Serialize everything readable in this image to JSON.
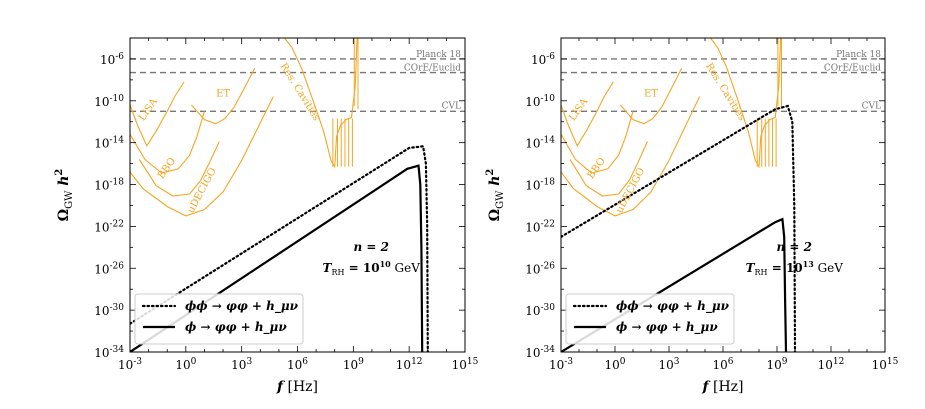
{
  "colors": {
    "detector": "#f5a623",
    "reference": "#777777",
    "signal": "#000000"
  },
  "chart_data": [
    {
      "type": "line",
      "xlabel": "f [Hz]",
      "ylabel": "Ω_GW h^2",
      "x_scale": "log10",
      "y_scale": "log10",
      "xlim_exp": [
        -3,
        15
      ],
      "ylim_exp": [
        -34,
        -4
      ],
      "x_ticks": [
        "10^-3",
        "10^0",
        "10^3",
        "10^6",
        "10^9",
        "10^12",
        "10^15"
      ],
      "y_ticks": [
        "10^-6",
        "10^-10",
        "10^-14",
        "10^-18",
        "10^-22",
        "10^-26",
        "10^-30",
        "10^-34"
      ],
      "reference_lines": [
        {
          "name": "Planck 18",
          "log10_omega": -6.0
        },
        {
          "name": "COrE/Euclid",
          "log10_omega": -7.3
        },
        {
          "name": "CVL",
          "log10_omega": -11.0
        }
      ],
      "detector_labels": [
        "LISA",
        "ET",
        "BBO",
        "uDECIGO",
        "Res. Cavities"
      ],
      "annotation": {
        "n": "n = 2",
        "trh": "T_RH = 10^10 GeV"
      },
      "legend": [
        "ϕϕ → φφ + h_μν",
        "ϕ → φφ + h_μν"
      ],
      "series": [
        {
          "name": "ϕϕ → φφ + h_μν",
          "style": "dotted",
          "log10_f": [
            -3,
            12.0,
            12.75,
            12.9,
            12.97,
            13.0
          ],
          "log10_omega": [
            -31.3,
            -14.5,
            -14.35,
            -16,
            -22,
            -34
          ]
        },
        {
          "name": "ϕ → φφ + h_μν",
          "style": "solid",
          "log10_f": [
            -3,
            11.9,
            12.5,
            12.6,
            12.66,
            12.7
          ],
          "log10_omega": [
            -34.0,
            -16.5,
            -16.2,
            -18,
            -24,
            -34
          ]
        }
      ]
    },
    {
      "type": "line",
      "xlabel": "f [Hz]",
      "ylabel": "Ω_GW h^2",
      "x_scale": "log10",
      "y_scale": "log10",
      "xlim_exp": [
        -3,
        15
      ],
      "ylim_exp": [
        -34,
        -4
      ],
      "x_ticks": [
        "10^-3",
        "10^0",
        "10^3",
        "10^6",
        "10^9",
        "10^12",
        "10^15"
      ],
      "y_ticks": [
        "10^-6",
        "10^-10",
        "10^-14",
        "10^-18",
        "10^-22",
        "10^-26",
        "10^-30",
        "10^-34"
      ],
      "reference_lines": [
        {
          "name": "Planck 18",
          "log10_omega": -6.0
        },
        {
          "name": "COrE/Euclid",
          "log10_omega": -7.3
        },
        {
          "name": "CVL",
          "log10_omega": -11.0
        }
      ],
      "detector_labels": [
        "LISA",
        "ET",
        "BBO",
        "uDECIGO",
        "Res. Cavities"
      ],
      "annotation": {
        "n": "n = 2",
        "trh": "T_RH = 10^13 GeV"
      },
      "legend": [
        "ϕϕ → φφ + h_μν",
        "ϕ → φφ + h_μν"
      ],
      "series": [
        {
          "name": "ϕϕ → φφ + h_μν",
          "style": "dotted",
          "log10_f": [
            -3,
            8.9,
            9.6,
            9.85,
            9.96,
            10.0
          ],
          "log10_omega": [
            -23.0,
            -10.8,
            -10.5,
            -12,
            -20,
            -34
          ]
        },
        {
          "name": "ϕ → φφ + h_μν",
          "style": "solid",
          "log10_f": [
            -3,
            8.9,
            9.3,
            9.4,
            9.45,
            9.5
          ],
          "log10_omega": [
            -34.0,
            -21.6,
            -21.3,
            -23,
            -29,
            -34
          ]
        }
      ]
    }
  ]
}
